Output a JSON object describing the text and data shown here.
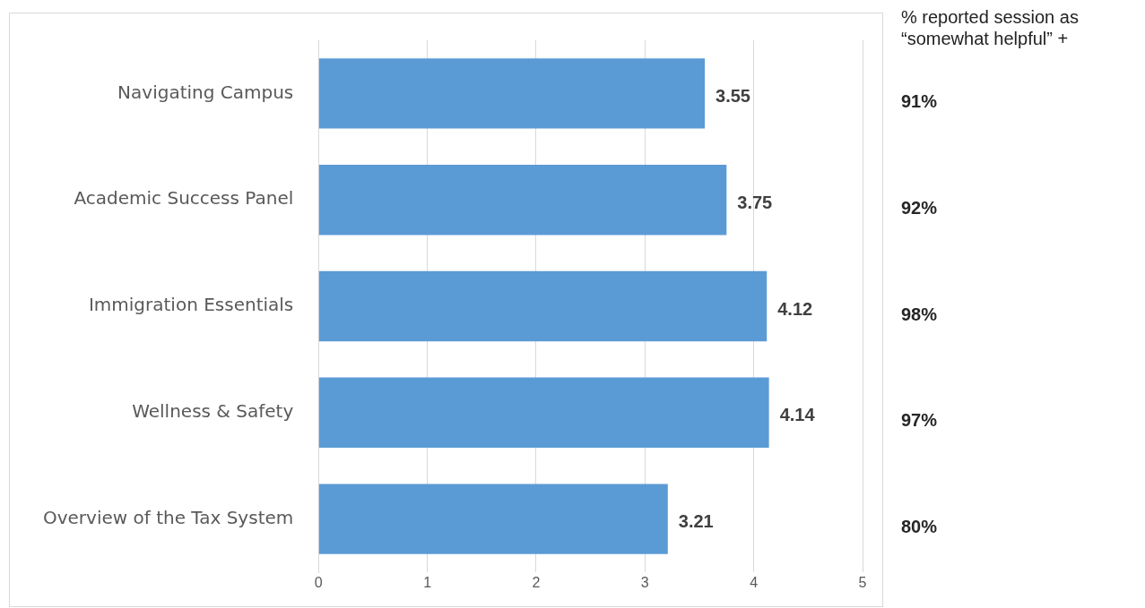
{
  "chart_data": {
    "type": "bar",
    "orientation": "horizontal",
    "categories": [
      "Navigating Campus",
      "Academic Success Panel",
      "Immigration Essentials",
      "Wellness & Safety",
      "Overview of the Tax System"
    ],
    "values": [
      3.55,
      3.75,
      4.12,
      4.14,
      3.21
    ],
    "color": "#5b9bd5",
    "xlim": [
      0,
      5
    ],
    "xticks": [
      0,
      1,
      2,
      3,
      4,
      5
    ],
    "grid": "x",
    "data_labels": true,
    "legend": false,
    "annotations": [
      "% reported session as “somewhat helpful” +",
      "91%",
      "92%",
      "98%",
      "97%",
      "80%"
    ]
  }
}
